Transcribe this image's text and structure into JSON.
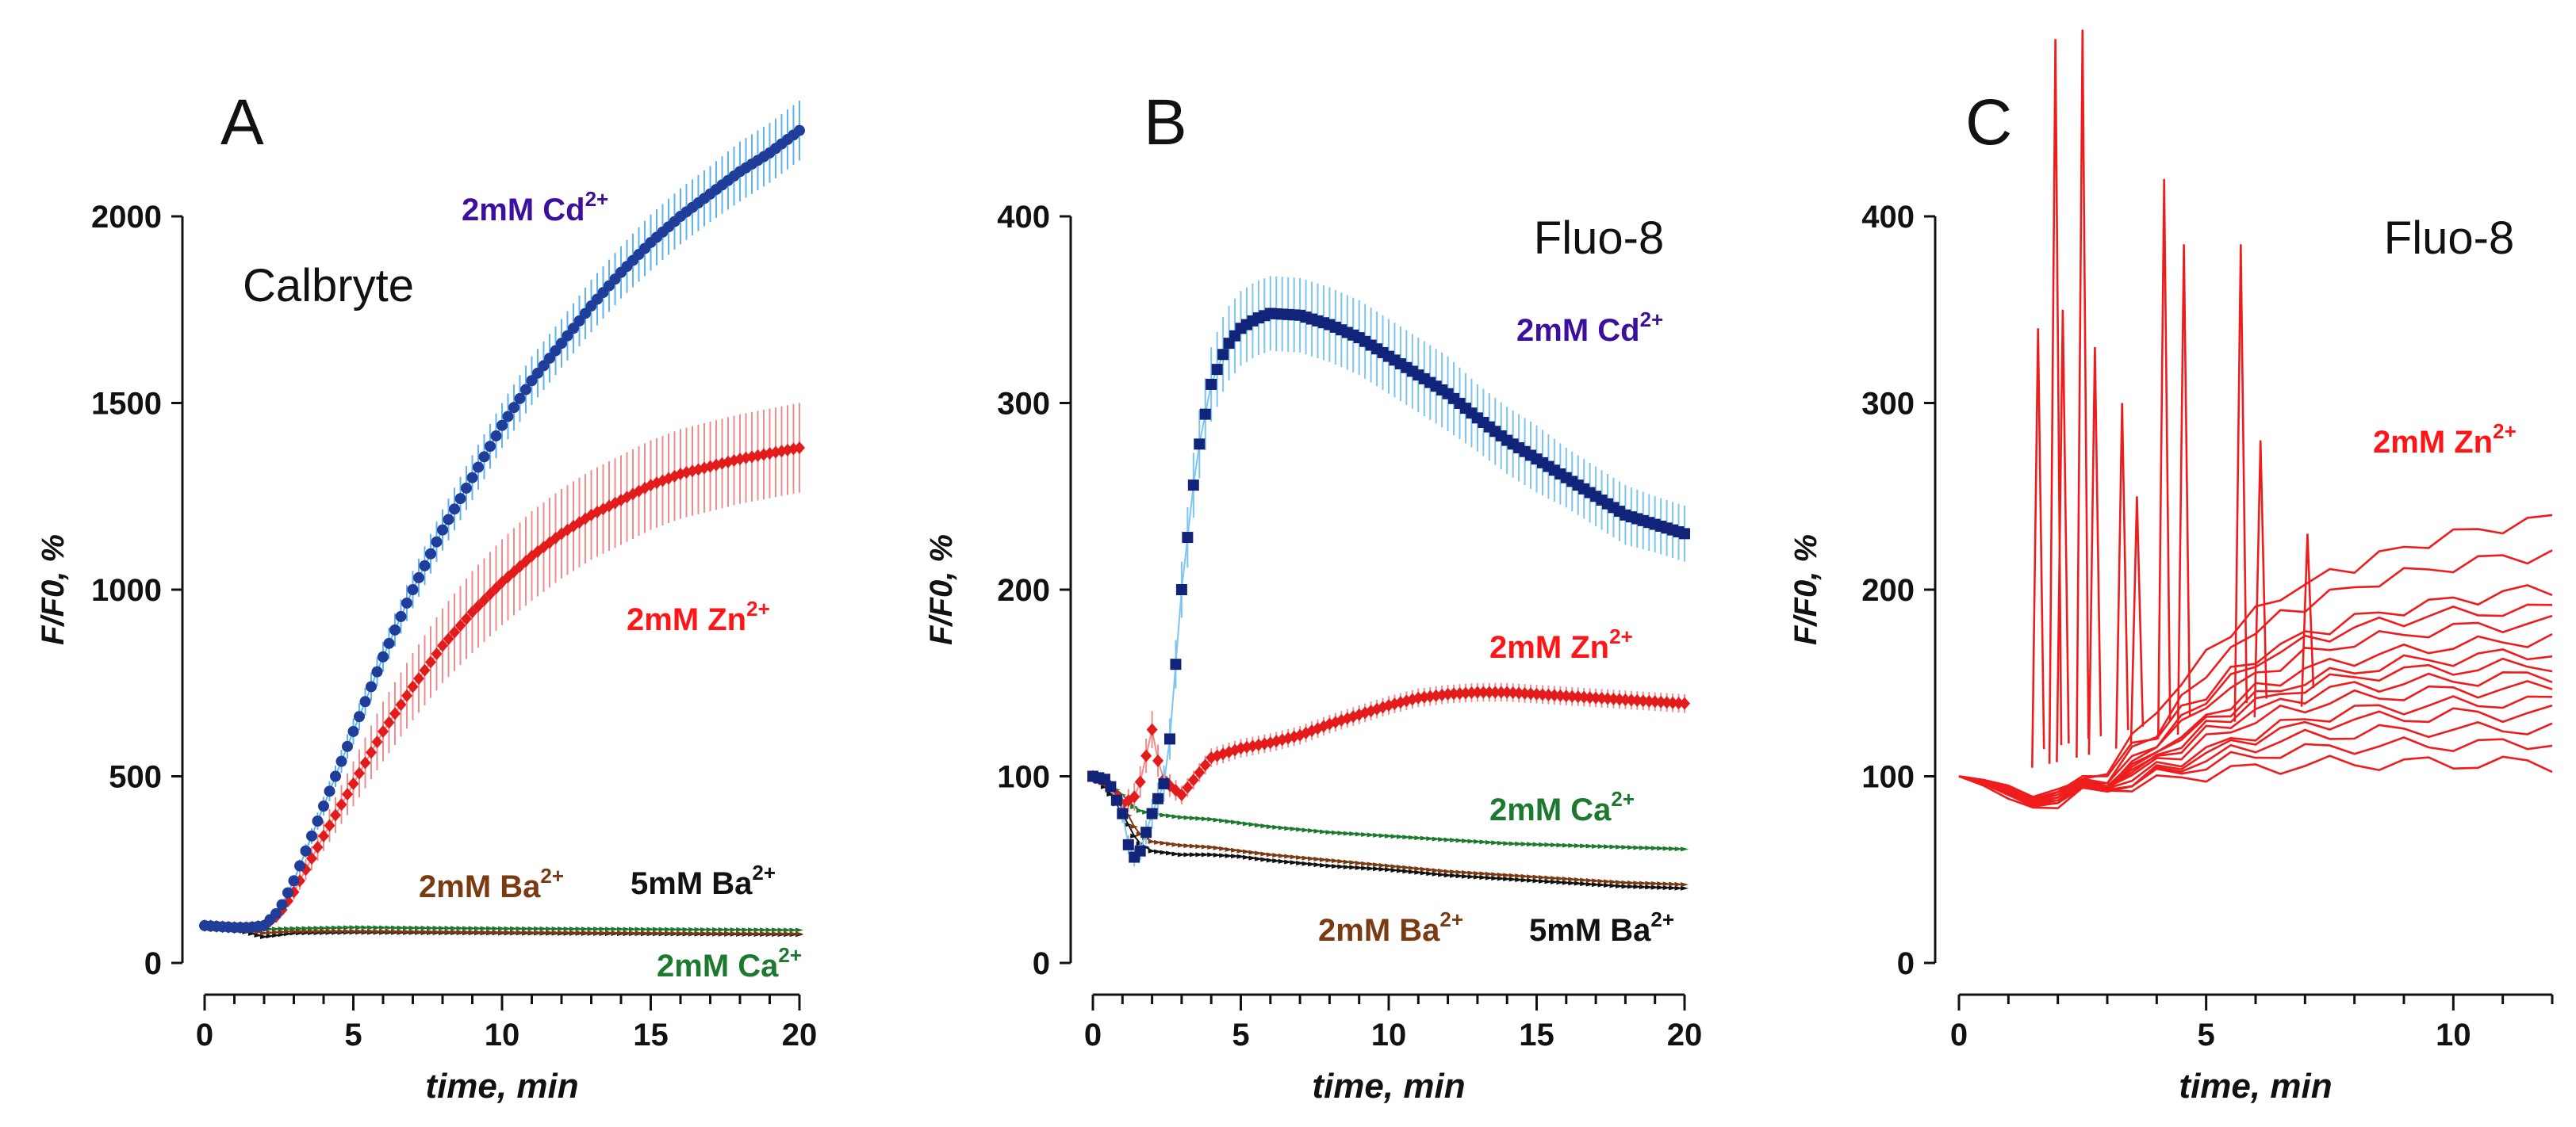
{
  "chart_data": [
    {
      "panel": "A",
      "type": "scatter",
      "dye_label": "Calbryte",
      "xlabel": "time, min",
      "ylabel": "F/F0, %",
      "xlim": [
        0,
        20
      ],
      "ylim": [
        0,
        2000
      ],
      "x_ticks": [
        0,
        5,
        10,
        15,
        20
      ],
      "y_ticks": [
        0,
        500,
        1000,
        1500,
        2000
      ],
      "x_tick_labels": [
        "0",
        "5",
        "10",
        "15",
        "20"
      ],
      "y_tick_labels": [
        "0",
        "500",
        "1000",
        "1500",
        "2000"
      ],
      "series": [
        {
          "name": "2mM Cd2+",
          "label_text": "2mM Cd",
          "label_sup": "2+",
          "color": "#1f3d99",
          "label_color": "#3d0f9e",
          "error_color": "#5fb3f0",
          "marker": "circle",
          "x": [
            0,
            1,
            1.5,
            2,
            2.5,
            3,
            4,
            5,
            6,
            7,
            8,
            9,
            10,
            11,
            12,
            13,
            14,
            15,
            16,
            17,
            18,
            19,
            20
          ],
          "y": [
            100,
            95,
            95,
            100,
            140,
            220,
            420,
            620,
            820,
            1000,
            1160,
            1300,
            1440,
            1560,
            1660,
            1760,
            1850,
            1930,
            2000,
            2060,
            2120,
            2170,
            2230
          ],
          "err": [
            0,
            0,
            0,
            5,
            10,
            15,
            25,
            35,
            40,
            50,
            55,
            60,
            60,
            65,
            65,
            70,
            70,
            75,
            75,
            75,
            80,
            80,
            80
          ]
        },
        {
          "name": "2mM Zn2+",
          "label_text": "2mM Zn",
          "label_sup": "2+",
          "color": "#e41b1b",
          "label_color": "#ff1515",
          "error_color": "#f08c8c",
          "marker": "diamond",
          "x": [
            0,
            1,
            1.5,
            2,
            2.5,
            3,
            4,
            5,
            6,
            7,
            8,
            9,
            10,
            11,
            12,
            13,
            14,
            15,
            16,
            17,
            18,
            19,
            20
          ],
          "y": [
            100,
            95,
            95,
            100,
            130,
            190,
            340,
            480,
            620,
            740,
            850,
            940,
            1020,
            1090,
            1150,
            1200,
            1240,
            1280,
            1310,
            1330,
            1350,
            1365,
            1380
          ],
          "err": [
            0,
            0,
            0,
            5,
            10,
            20,
            40,
            60,
            80,
            90,
            100,
            110,
            115,
            120,
            120,
            120,
            120,
            120,
            120,
            120,
            120,
            120,
            120
          ]
        },
        {
          "name": "2mM Ba2+",
          "label_text": "2mM Ba",
          "label_sup": "2+",
          "color": "#7a3a12",
          "label_color": "#7a3a12",
          "marker": "triangle",
          "x": [
            0,
            1,
            2,
            3,
            5,
            10,
            15,
            20
          ],
          "y": [
            100,
            95,
            80,
            85,
            85,
            82,
            80,
            78
          ]
        },
        {
          "name": "5mM Ba2+",
          "label_text": "5mM Ba",
          "label_sup": "2+",
          "color": "#111111",
          "label_color": "#111111",
          "marker": "triangle",
          "x": [
            0,
            1,
            2,
            3,
            5,
            10,
            15,
            20
          ],
          "y": [
            100,
            92,
            70,
            80,
            82,
            80,
            78,
            76
          ]
        },
        {
          "name": "2mM Ca2+",
          "label_text": "2mM Ca",
          "label_sup": "2+",
          "color": "#1b7a2e",
          "label_color": "#1b7a2e",
          "marker": "triangle",
          "x": [
            0,
            1,
            2,
            3,
            5,
            10,
            15,
            20
          ],
          "y": [
            100,
            98,
            90,
            92,
            95,
            92,
            90,
            88
          ]
        }
      ]
    },
    {
      "panel": "B",
      "type": "scatter",
      "dye_label": "Fluo-8",
      "xlabel": "time, min",
      "ylabel": "F/F0, %",
      "xlim": [
        0,
        20
      ],
      "ylim": [
        0,
        400
      ],
      "x_ticks": [
        0,
        5,
        10,
        15,
        20
      ],
      "y_ticks": [
        0,
        100,
        200,
        300,
        400
      ],
      "x_tick_labels": [
        "0",
        "5",
        "10",
        "15",
        "20"
      ],
      "y_tick_labels": [
        "0",
        "100",
        "200",
        "300",
        "400"
      ],
      "series": [
        {
          "name": "2mM Cd2+",
          "label_text": "2mM Cd",
          "label_sup": "2+",
          "color": "#12237a",
          "label_color": "#3d0f9e",
          "error_color": "#7cc4f2",
          "marker": "square",
          "x": [
            0,
            0.5,
            1,
            1.3,
            1.6,
            2,
            2.5,
            3,
            3.5,
            4,
            4.5,
            5,
            5.5,
            6,
            7,
            8,
            9,
            10,
            11,
            12,
            13,
            14,
            15,
            16,
            17,
            18,
            19,
            20
          ],
          "y": [
            100,
            98,
            80,
            55,
            60,
            80,
            100,
            200,
            270,
            310,
            330,
            340,
            345,
            348,
            347,
            342,
            335,
            325,
            315,
            305,
            292,
            280,
            270,
            260,
            250,
            240,
            235,
            230
          ],
          "err": [
            0,
            0,
            5,
            5,
            5,
            8,
            10,
            15,
            18,
            20,
            20,
            20,
            20,
            20,
            20,
            20,
            20,
            20,
            20,
            20,
            18,
            18,
            18,
            16,
            16,
            16,
            15,
            15
          ]
        },
        {
          "name": "2mM Zn2+",
          "label_text": "2mM Zn",
          "label_sup": "2+",
          "color": "#e41b1b",
          "label_color": "#ff1515",
          "error_color": "#f08c8c",
          "marker": "diamond",
          "x": [
            0,
            0.5,
            1,
            1.5,
            2,
            2.3,
            2.6,
            3,
            4,
            5,
            6,
            7,
            8,
            9,
            10,
            11,
            12,
            13,
            14,
            15,
            16,
            17,
            18,
            19,
            20
          ],
          "y": [
            100,
            97,
            85,
            90,
            125,
            100,
            95,
            90,
            110,
            115,
            118,
            122,
            128,
            133,
            138,
            142,
            144,
            145,
            145,
            144,
            143,
            142,
            141,
            140,
            139
          ],
          "err": [
            0,
            0,
            5,
            8,
            10,
            8,
            6,
            5,
            5,
            5,
            5,
            5,
            5,
            5,
            5,
            5,
            5,
            5,
            5,
            5,
            5,
            5,
            5,
            5,
            5
          ]
        },
        {
          "name": "2mM Ca2+",
          "label_text": "2mM Ca",
          "label_sup": "2+",
          "color": "#1b7a2e",
          "label_color": "#1b7a2e",
          "marker": "triangle",
          "x": [
            0,
            0.5,
            1,
            1.5,
            2,
            3,
            4,
            5,
            6,
            8,
            10,
            12,
            14,
            16,
            18,
            20
          ],
          "y": [
            100,
            97,
            90,
            82,
            80,
            78,
            77,
            75,
            73,
            70,
            68,
            66,
            64,
            63,
            62,
            61
          ]
        },
        {
          "name": "2mM Ba2+",
          "label_text": "2mM Ba",
          "label_sup": "2+",
          "color": "#7a3a12",
          "label_color": "#7a3a12",
          "marker": "triangle",
          "x": [
            0,
            0.5,
            1,
            1.5,
            2,
            3,
            4,
            5,
            6,
            8,
            10,
            12,
            14,
            16,
            18,
            20
          ],
          "y": [
            100,
            95,
            85,
            70,
            65,
            63,
            62,
            60,
            58,
            55,
            52,
            49,
            47,
            45,
            43,
            42
          ]
        },
        {
          "name": "5mM Ba2+",
          "label_text": "5mM Ba",
          "label_sup": "2+",
          "color": "#111111",
          "label_color": "#111111",
          "marker": "triangle",
          "x": [
            0,
            0.5,
            1,
            1.5,
            2,
            3,
            4,
            5,
            6,
            8,
            10,
            12,
            14,
            16,
            18,
            20
          ],
          "y": [
            100,
            93,
            80,
            65,
            60,
            58,
            58,
            57,
            55,
            52,
            50,
            47,
            45,
            43,
            41,
            40
          ]
        }
      ]
    },
    {
      "panel": "C",
      "type": "line",
      "dye_label": "Fluo-8",
      "xlabel": "time, min",
      "ylabel": "F/F0, %",
      "xlim": [
        0,
        12
      ],
      "ylim": [
        0,
        400
      ],
      "x_ticks": [
        0,
        5,
        10
      ],
      "y_ticks": [
        0,
        100,
        200,
        300,
        400
      ],
      "x_tick_labels": [
        "0",
        "5",
        "10"
      ],
      "y_tick_labels": [
        "0",
        "100",
        "200",
        "300",
        "400"
      ],
      "series_label": "2mM Zn",
      "series_label_sup": "2+",
      "series_color": "#ff1515",
      "trace_color": "#ee1c1c",
      "traces_x": [
        0,
        0.5,
        1,
        1.5,
        2,
        2.5,
        3,
        3.5,
        4,
        4.5,
        5,
        5.5,
        6,
        6.5,
        7,
        7.5,
        8,
        8.5,
        9,
        9.5,
        10,
        10.5,
        11,
        11.5,
        12
      ],
      "traces": [
        [
          100,
          97,
          92,
          88,
          90,
          95,
          105,
          120,
          135,
          150,
          165,
          178,
          188,
          196,
          203,
          208,
          213,
          218,
          222,
          226,
          229,
          232,
          234,
          236,
          238
        ],
        [
          100,
          96,
          90,
          86,
          88,
          93,
          100,
          112,
          125,
          140,
          155,
          168,
          178,
          186,
          192,
          197,
          201,
          205,
          208,
          211,
          213,
          215,
          217,
          218,
          220
        ],
        [
          100,
          98,
          93,
          89,
          92,
          97,
          104,
          114,
          124,
          134,
          145,
          155,
          163,
          170,
          176,
          180,
          184,
          187,
          190,
          192,
          194,
          196,
          198,
          199,
          200
        ],
        [
          100,
          95,
          88,
          85,
          86,
          90,
          96,
          106,
          118,
          130,
          142,
          152,
          160,
          167,
          172,
          176,
          179,
          182,
          184,
          186,
          187,
          188,
          189,
          189,
          190
        ],
        [
          100,
          97,
          92,
          90,
          92,
          95,
          100,
          108,
          118,
          128,
          138,
          147,
          154,
          160,
          165,
          169,
          172,
          174,
          176,
          178,
          179,
          180,
          181,
          182,
          182
        ],
        [
          100,
          96,
          90,
          87,
          88,
          91,
          96,
          104,
          113,
          122,
          131,
          139,
          146,
          152,
          157,
          160,
          163,
          165,
          167,
          169,
          170,
          171,
          172,
          173,
          174
        ],
        [
          100,
          98,
          94,
          90,
          91,
          94,
          98,
          105,
          113,
          121,
          129,
          136,
          142,
          147,
          151,
          154,
          157,
          159,
          161,
          162,
          163,
          164,
          165,
          166,
          166
        ],
        [
          100,
          97,
          91,
          88,
          89,
          92,
          96,
          102,
          110,
          118,
          126,
          133,
          139,
          144,
          148,
          151,
          153,
          155,
          156,
          157,
          158,
          158,
          159,
          159,
          160
        ],
        [
          100,
          96,
          92,
          89,
          90,
          93,
          97,
          103,
          109,
          116,
          123,
          129,
          135,
          139,
          143,
          146,
          148,
          149,
          150,
          151,
          152,
          152,
          153,
          153,
          154
        ],
        [
          100,
          97,
          93,
          91,
          92,
          94,
          97,
          101,
          107,
          113,
          119,
          125,
          130,
          134,
          137,
          140,
          142,
          143,
          144,
          145,
          146,
          146,
          147,
          147,
          148
        ],
        [
          100,
          98,
          95,
          92,
          92,
          94,
          96,
          99,
          104,
          109,
          114,
          119,
          123,
          127,
          130,
          133,
          135,
          136,
          137,
          138,
          139,
          139,
          140,
          140,
          140
        ],
        [
          100,
          96,
          91,
          88,
          88,
          90,
          93,
          97,
          102,
          107,
          112,
          117,
          121,
          124,
          127,
          129,
          130,
          131,
          132,
          132,
          133,
          133,
          133,
          134,
          134
        ],
        [
          100,
          97,
          93,
          90,
          90,
          92,
          94,
          97,
          101,
          105,
          109,
          113,
          116,
          119,
          121,
          122,
          123,
          124,
          124,
          125,
          125,
          125,
          125,
          126,
          126
        ],
        [
          100,
          98,
          95,
          93,
          93,
          94,
          95,
          97,
          100,
          103,
          106,
          109,
          111,
          113,
          114,
          115,
          116,
          116,
          117,
          117,
          117,
          117,
          117,
          118,
          118
        ],
        [
          100,
          97,
          94,
          92,
          92,
          93,
          94,
          95,
          97,
          99,
          101,
          103,
          104,
          105,
          106,
          107,
          107,
          107,
          107,
          107,
          107,
          107,
          107,
          107,
          106
        ]
      ],
      "spikes": [
        {
          "x": 1.6,
          "y": 340
        },
        {
          "x": 1.95,
          "y": 495
        },
        {
          "x": 2.1,
          "y": 350
        },
        {
          "x": 2.5,
          "y": 500
        },
        {
          "x": 2.75,
          "y": 330
        },
        {
          "x": 3.3,
          "y": 300
        },
        {
          "x": 3.6,
          "y": 250
        },
        {
          "x": 4.15,
          "y": 420
        },
        {
          "x": 4.55,
          "y": 385
        },
        {
          "x": 5.7,
          "y": 385
        },
        {
          "x": 6.1,
          "y": 280
        },
        {
          "x": 7.05,
          "y": 230
        }
      ]
    }
  ]
}
